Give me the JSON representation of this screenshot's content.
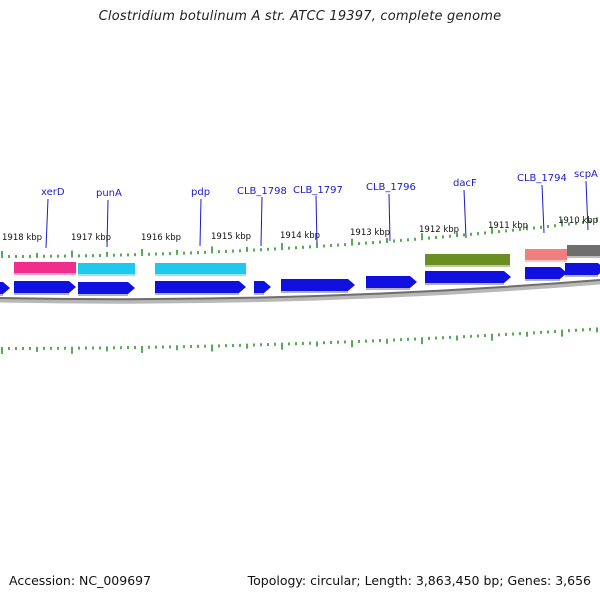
{
  "title": "Clostridium botulinum A str. ATCC 19397, complete genome",
  "footer": {
    "accession": "Accession: NC_009697",
    "summary": "Topology: circular; Length: 3,863,450 bp; Genes: 3,656"
  },
  "colors": {
    "cds_arrow": "#1010e0",
    "leader_line": "#1a1ad0",
    "tick": "#228b22",
    "backbone": "#808080"
  },
  "kbp_labels": [
    "1918 kbp",
    "1917 kbp",
    "1916 kbp",
    "1915 kbp",
    "1914 kbp",
    "1913 kbp",
    "1912 kbp",
    "1911 kbp",
    "1910 kbp"
  ],
  "gene_labels": [
    "xerD",
    "punA",
    "pdp",
    "CLB_1798",
    "CLB_1797",
    "CLB_1796",
    "dacF",
    "CLB_1794",
    "scpA"
  ],
  "feature_blocks": [
    {
      "name": "xerD",
      "color": "#ee2d8c"
    },
    {
      "name": "punA",
      "color": "#1ec8ee"
    },
    {
      "name": "pdp",
      "color": "#1ec8ee"
    },
    {
      "name": "dacF",
      "color": "#6b8e23"
    },
    {
      "name": "CLB_1794",
      "color": "#f08080"
    },
    {
      "name": "scpA",
      "color": "#6e6e6e"
    }
  ]
}
